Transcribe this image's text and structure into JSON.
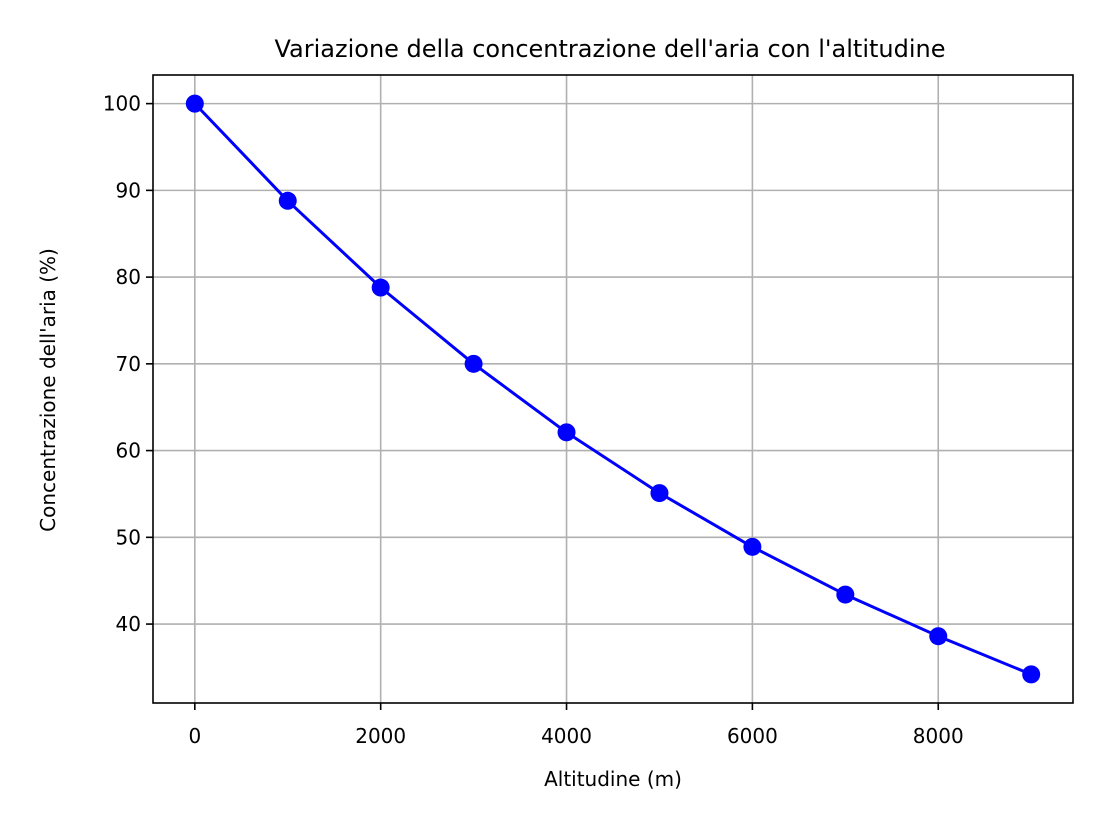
{
  "chart_data": {
    "type": "line",
    "title": "Variazione della concentrazione dell'aria con l'altitudine",
    "xlabel": "Altitudine (m)",
    "ylabel": "Concentrazione dell'aria (%)",
    "x": [
      0,
      1000,
      2000,
      3000,
      4000,
      5000,
      6000,
      7000,
      8000,
      9000
    ],
    "series": [
      {
        "values": [
          100,
          88.8,
          78.8,
          70.0,
          62.1,
          55.1,
          48.9,
          43.4,
          38.6,
          34.2
        ],
        "color": "#0000ff",
        "marker": "circle"
      }
    ],
    "xlim": [
      -450,
      9450
    ],
    "ylim": [
      30.9,
      103.3
    ],
    "xticks": [
      0,
      2000,
      4000,
      6000,
      8000
    ],
    "yticks": [
      40,
      50,
      60,
      70,
      80,
      90,
      100
    ],
    "grid": true,
    "grid_color": "#b0b0b0"
  }
}
